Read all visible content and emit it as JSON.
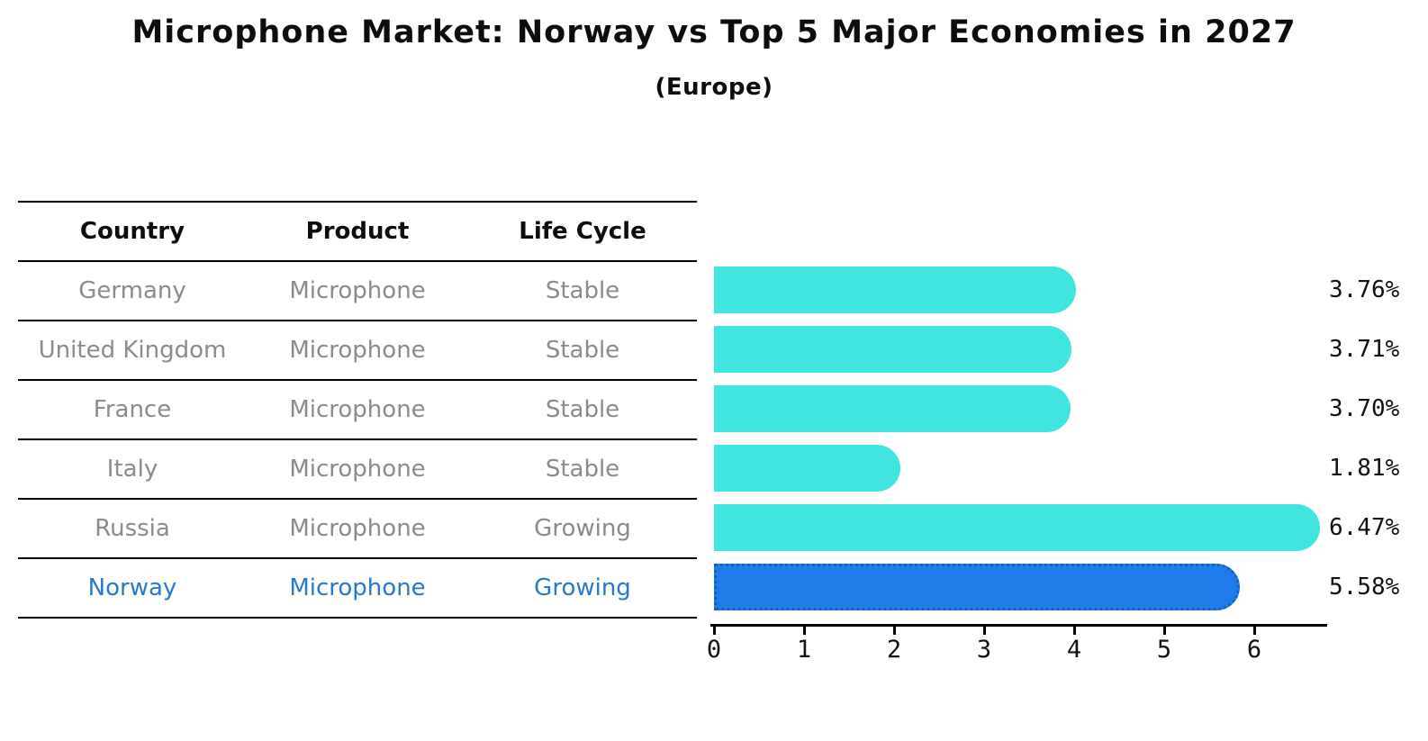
{
  "title": "Microphone Market: Norway vs Top 5 Major Economies in 2027",
  "subtitle": "(Europe)",
  "table": {
    "headers": [
      "Country",
      "Product",
      "Life Cycle"
    ],
    "rows": [
      {
        "country": "Germany",
        "product": "Microphone",
        "life_cycle": "Stable",
        "highlighted": false
      },
      {
        "country": "United Kingdom",
        "product": "Microphone",
        "life_cycle": "Stable",
        "highlighted": false
      },
      {
        "country": "France",
        "product": "Microphone",
        "life_cycle": "Stable",
        "highlighted": false
      },
      {
        "country": "Italy",
        "product": "Microphone",
        "life_cycle": "Stable",
        "highlighted": false
      },
      {
        "country": "Russia",
        "product": "Microphone",
        "life_cycle": "Growing",
        "highlighted": false
      },
      {
        "country": "Norway",
        "product": "Microphone",
        "life_cycle": "Growing",
        "highlighted": true
      }
    ]
  },
  "chart_data": {
    "type": "bar",
    "orientation": "horizontal",
    "title": "Microphone Market: Norway vs Top 5 Major Economies in 2027",
    "subtitle": "(Europe)",
    "categories": [
      "Germany",
      "United Kingdom",
      "France",
      "Italy",
      "Russia",
      "Norway"
    ],
    "values": [
      3.76,
      3.71,
      3.7,
      1.81,
      6.47,
      5.58
    ],
    "value_labels": [
      "3.76%",
      "3.71%",
      "3.70%",
      "1.81%",
      "6.47%",
      "5.58%"
    ],
    "highlighted_category": "Norway",
    "xlabel": "",
    "ylabel": "",
    "xlim": [
      0,
      6.85
    ],
    "xticks": [
      0,
      1,
      2,
      3,
      4,
      5,
      6
    ],
    "grid": false,
    "legend": false,
    "colors": {
      "bar_default": "#40E5E2",
      "bar_highlight_fill": "#1F7CEA",
      "bar_highlight_edge": "#1460C8",
      "row_text": "#8B8B8B",
      "highlight_text": "#2879CD",
      "header_text": "#0D0D0D",
      "axis": "#000000"
    }
  }
}
